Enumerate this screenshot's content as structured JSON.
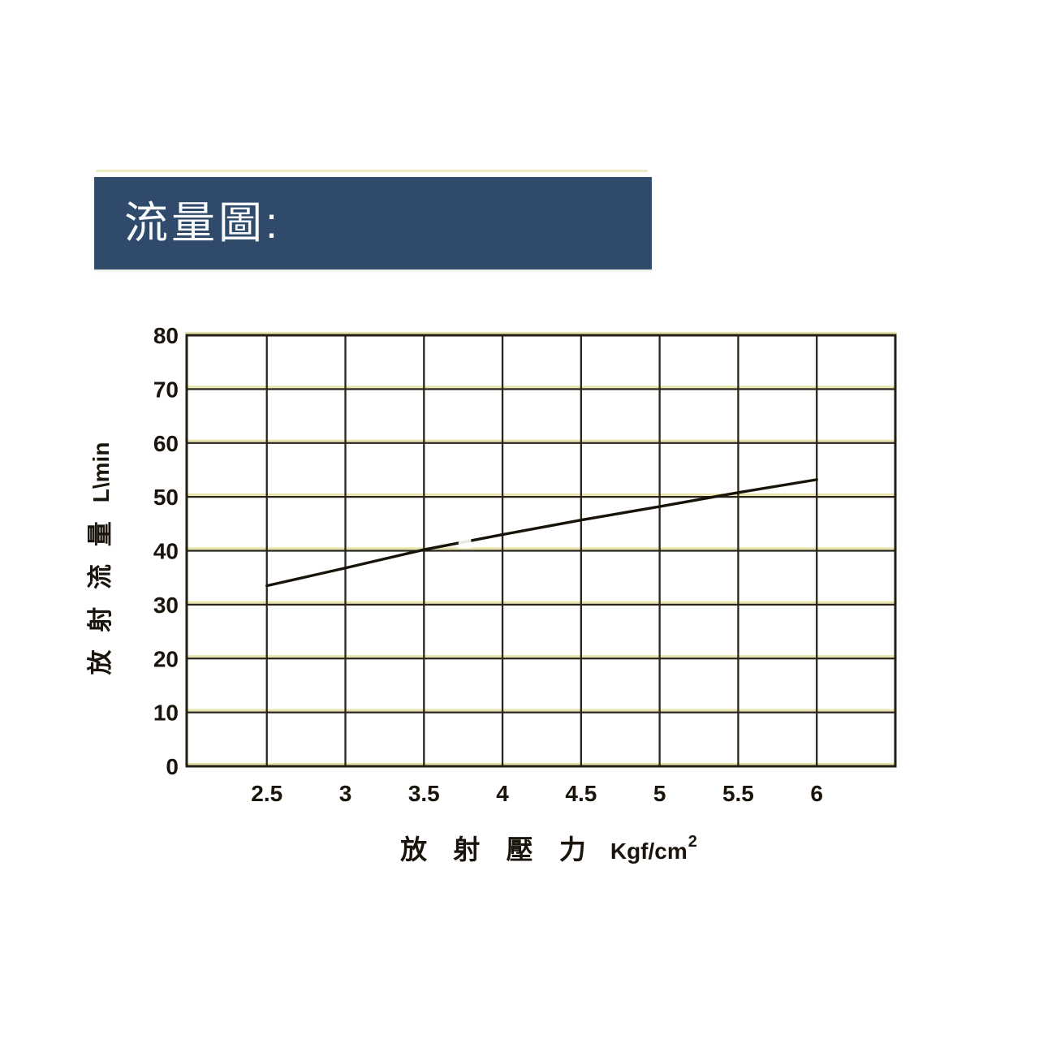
{
  "banner": {
    "title": "流量圖:"
  },
  "colors": {
    "banner_bg": "#2f4a6b",
    "banner_text": "#f7f9fb",
    "grid": "#2a241b",
    "plot_border": "#231d14",
    "data_line": "#181309",
    "tick_text": "#1a140c",
    "scan_yellow": "#dfdb8a",
    "page_bg": "#ffffff"
  },
  "chart_data": {
    "type": "line",
    "title": "流量圖:",
    "x": [
      2.5,
      3,
      3.5,
      4,
      4.5,
      5,
      5.5,
      6
    ],
    "series": [
      {
        "name": "discharge-flow-rate",
        "values": [
          33.5,
          36.8,
          40.2,
          43.0,
          45.7,
          48.2,
          50.8,
          53.2
        ]
      }
    ],
    "x_ticks": [
      "2.5",
      "3",
      "3.5",
      "4",
      "4.5",
      "5",
      "5.5",
      "6"
    ],
    "y_ticks": [
      "0",
      "10",
      "20",
      "30",
      "40",
      "50",
      "60",
      "70",
      "80"
    ],
    "xlim": [
      1.99,
      6.5
    ],
    "ylim": [
      0,
      80
    ],
    "xlabel": "放 射 壓 力 Kgf/cm²",
    "xlabel_cjk": "放 射 壓 力",
    "xlabel_unit": "Kgf/cm",
    "xlabel_sup": "2",
    "ylabel": "放 射 流 量 L\\min",
    "ylabel_cjk": "放 射 流 量",
    "ylabel_unit": "L\\min",
    "grid": "on",
    "legend": "none",
    "line_gap_x": [
      3.72,
      3.8
    ]
  }
}
